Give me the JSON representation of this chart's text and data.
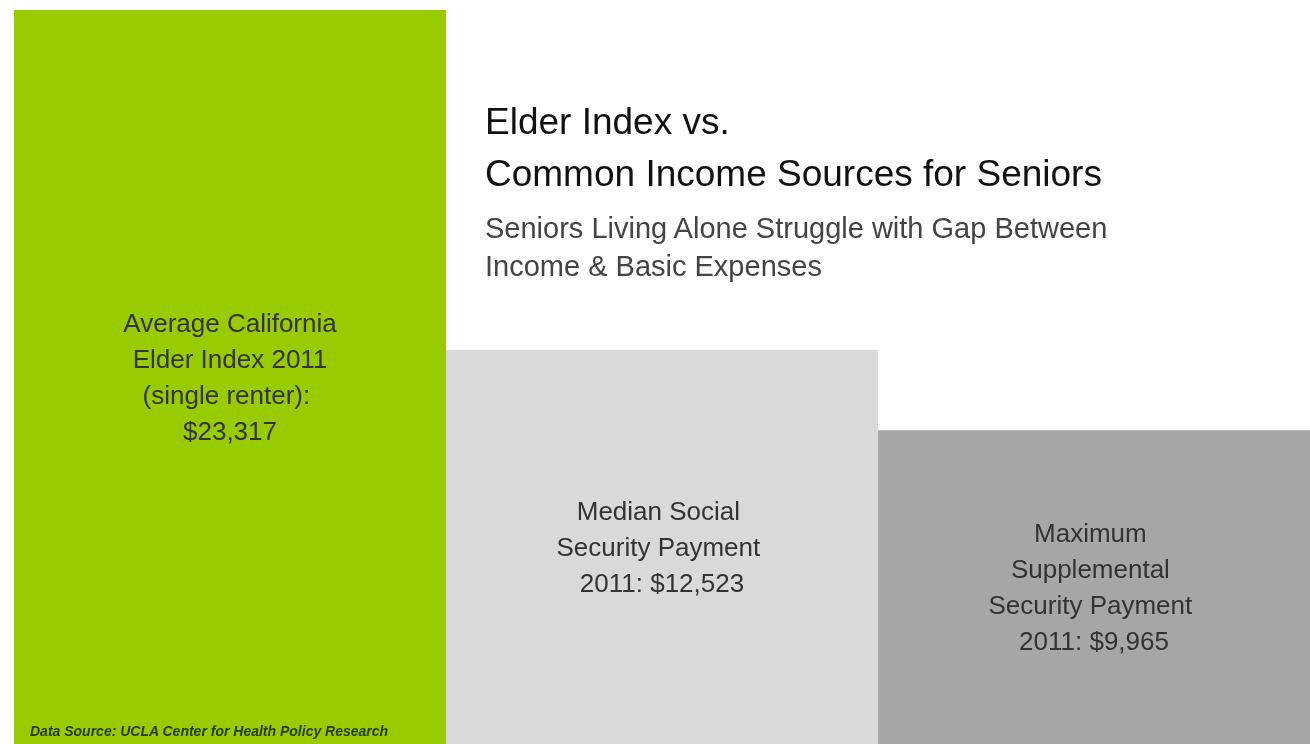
{
  "chart_data": {
    "type": "bar",
    "title": "Elder Index vs.\nCommon Income Sources for Seniors",
    "subtitle": "Seniors Living Alone Struggle with Gap Between\nIncome & Basic Expenses",
    "categories": [
      null,
      null,
      null
    ],
    "values": [
      23317,
      12523,
      9965
    ],
    "value_labels": [
      "Average California Elder Index 2011 (single renter): $23,317",
      "Median Social Security Payment 2011: $12,523",
      "Maximum Supplemental Security Payment 2011: $9,965"
    ],
    "colors": [
      "#99cc00",
      "#d9d9d9",
      "#a6a6a6"
    ],
    "annotations": [
      "Data Source: UCLA Center for Health Policy Research"
    ],
    "tick_labels": false
  }
}
